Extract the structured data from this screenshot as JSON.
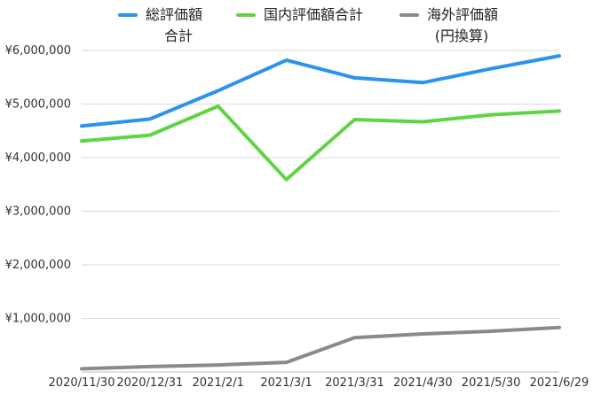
{
  "chart_data": {
    "type": "line",
    "categories": [
      "2020/11/30",
      "2020/12/31",
      "2021/2/1",
      "2021/3/1",
      "2021/3/31",
      "2021/4/30",
      "2021/5/30",
      "2021/6/29"
    ],
    "series": [
      {
        "name_lines": [
          "総評価額",
          "合計"
        ],
        "name": "総評価額合計",
        "color": "#2a93ef",
        "values": [
          4590000,
          4720000,
          5250000,
          5820000,
          5490000,
          5400000,
          5660000,
          5900000
        ]
      },
      {
        "name_lines": [
          "国内評価額合計"
        ],
        "name": "国内評価額合計",
        "color": "#5fd443",
        "values": [
          4310000,
          4420000,
          4960000,
          3590000,
          4710000,
          4670000,
          4800000,
          4870000
        ]
      },
      {
        "name_lines": [
          "海外評価額",
          "(円換算)"
        ],
        "name": "海外評価額(円換算)",
        "color": "#8a8a8a",
        "values": [
          60000,
          100000,
          130000,
          180000,
          640000,
          710000,
          760000,
          830000
        ]
      }
    ],
    "y_ticks": [
      "¥1,000,000",
      "¥2,000,000",
      "¥3,000,000",
      "¥4,000,000",
      "¥5,000,000",
      "¥6,000,000"
    ],
    "ylim": [
      0,
      6000000
    ],
    "grid": true,
    "legend_position": "top"
  }
}
